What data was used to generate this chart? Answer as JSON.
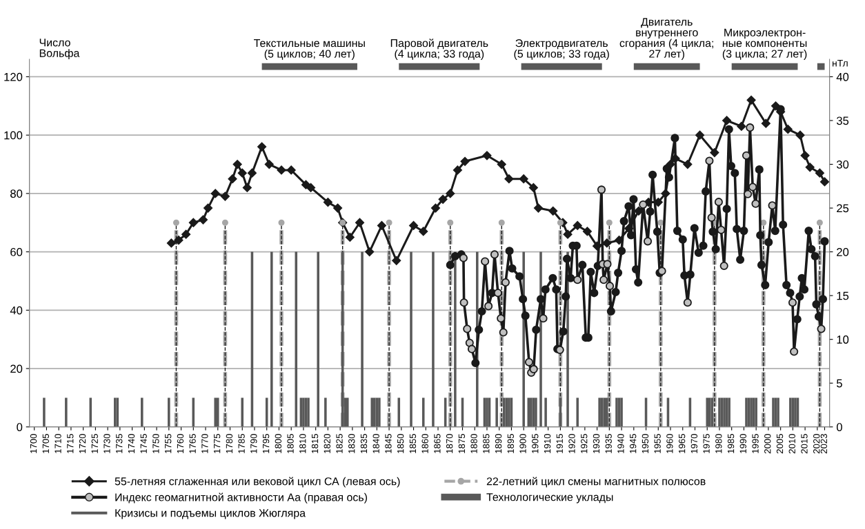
{
  "chart_data": {
    "type": "line",
    "ylabel": "Число\nВольфа",
    "y2label": "нТл",
    "annotations": [
      {
        "text": "Текстильные машины\n(5 циклов; 40 лет)",
        "x": 1812.5,
        "y": 123.5
      },
      {
        "text": "Паровой двигатель\n(4 цикла; 33 года)",
        "x": 1865.5,
        "y": 123.5
      },
      {
        "text": "Электродвигатель\n(5 циклов; 33 года)",
        "x": 1915.5,
        "y": 123.5
      },
      {
        "text": "Двигатель\nвнутреннего\nсгорания (4 цикла;\n27 лет)",
        "x": 1958.5,
        "y": 123.5
      },
      {
        "text": "Микроэлектрон-\nные компоненты\n(3 цикла; 27 лет)",
        "x": 1998.5,
        "y": 123.5
      }
    ],
    "xlim": [
      1698,
      2025
    ],
    "xticks": [
      1700,
      1705,
      1710,
      1715,
      1720,
      1725,
      1730,
      1735,
      1740,
      1745,
      1750,
      1755,
      1760,
      1765,
      1770,
      1775,
      1780,
      1785,
      1790,
      1795,
      1800,
      1805,
      1810,
      1815,
      1820,
      1825,
      1830,
      1835,
      1840,
      1845,
      1850,
      1855,
      1860,
      1865,
      1870,
      1875,
      1880,
      1885,
      1890,
      1895,
      1900,
      1905,
      1910,
      1915,
      1920,
      1925,
      1930,
      1935,
      1940,
      1945,
      1950,
      1955,
      1960,
      1965,
      1970,
      1975,
      1980,
      1985,
      1990,
      1995,
      2000,
      2005,
      2010,
      2015,
      2020,
      2023
    ],
    "ylim": [
      0,
      126
    ],
    "yticks": [
      0,
      20,
      40,
      60,
      80,
      100,
      120
    ],
    "y2lim": [
      0,
      42
    ],
    "y2ticks": [
      0,
      5,
      10,
      15,
      20,
      25,
      30,
      35,
      40
    ],
    "grid": "y",
    "legend": "bottom",
    "series": [
      {
        "name": "55-летняя сглаженная или вековой цикл СА (левая ось)",
        "type": "line",
        "color": "#1a1a1a",
        "marker": "diamond",
        "axis": "y",
        "x": [
          1756,
          1759,
          1762,
          1765,
          1769,
          1771,
          1774,
          1778,
          1781,
          1783,
          1785,
          1787,
          1789,
          1793,
          1796,
          1801,
          1805,
          1811,
          1813,
          1820,
          1824,
          1826,
          1829,
          1833,
          1837,
          1842,
          1848,
          1855,
          1859,
          1864,
          1867,
          1870,
          1873,
          1876,
          1885,
          1891,
          1894,
          1900,
          1904,
          1906,
          1912,
          1916,
          1918,
          1922,
          1926,
          1930,
          1934,
          1939,
          1943,
          1947,
          1951,
          1955,
          1958,
          1960,
          1962,
          1967,
          1972,
          1978,
          1983,
          1989,
          1993,
          1999,
          2003,
          2005,
          2008,
          2013,
          2015,
          2017,
          2021,
          2023
        ],
        "values": [
          63,
          64,
          66,
          70,
          71,
          75,
          80,
          79,
          85,
          90,
          87,
          82,
          87,
          96,
          90,
          88,
          88,
          83,
          82,
          77,
          75,
          70,
          65,
          70,
          60,
          69,
          57,
          69,
          67,
          75,
          78,
          80,
          88,
          91,
          93,
          90,
          85,
          85,
          82,
          75,
          74,
          70,
          66,
          69,
          67,
          62,
          63,
          64,
          68,
          74,
          77,
          77,
          80,
          90,
          92,
          90,
          100,
          94,
          105,
          103,
          112,
          104,
          110,
          108,
          102,
          100,
          93,
          89,
          87,
          84
        ]
      },
      {
        "name": "Индекс геомагнитной активности Аа (правая ось)",
        "type": "line",
        "color": "#1a1a1a",
        "marker": "circle",
        "axis": "y2",
        "x": [
          1870,
          1872,
          1874.5,
          1875.4,
          1875.6,
          1876.9,
          1877.9,
          1878.8,
          1880.3,
          1881.7,
          1882.9,
          1884.2,
          1885.6,
          1887.1,
          1888.1,
          1889.5,
          1890.7,
          1891.7,
          1892.6,
          1894.2,
          1895.3,
          1898.3,
          1899.7,
          1900.7,
          1902.2,
          1903.1,
          1904.1,
          1905.1,
          1907,
          1908,
          1908.9,
          1911.9,
          1913.3,
          1913.8,
          1914.8,
          1916.2,
          1917.2,
          1917.7,
          1919.2,
          1920.1,
          1921.6,
          1922,
          1924,
          1925.4,
          1926.4,
          1927.4,
          1928.8,
          1930.3,
          1931.8,
          1932.3,
          1932.7,
          1934.2,
          1935.2,
          1935.7,
          1937.6,
          1938.6,
          1940,
          1941,
          1942.9,
          1943.9,
          1944.9,
          1945.9,
          1946.8,
          1948.8,
          1950.7,
          1951.7,
          1952.7,
          1954.6,
          1955.6,
          1956.5,
          1958.5,
          1959.4,
          1961.8,
          1962.8,
          1965,
          1965.7,
          1967,
          1968.1,
          1969.8,
          1971.5,
          1973.4,
          1974.4,
          1975.9,
          1976.8,
          1977.3,
          1978.5,
          1979.7,
          1980.7,
          1981.9,
          1983,
          1983.9,
          1984.8,
          1986.3,
          1987.1,
          1988.5,
          1990,
          1991,
          1991.6,
          1992.5,
          1993.6,
          1994.8,
          1996.3,
          1996.7,
          1997.2,
          1998.7,
          2000.1,
          2001.6,
          2002.8,
          2005,
          2006,
          2007.4,
          2008.9,
          2009.9,
          2010.5,
          2011.8,
          2012.8,
          2013.7,
          2014.7,
          2016.5,
          2017.6,
          2019.1,
          2019.6,
          2020.6,
          2021.6,
          2022.3,
          2023
        ],
        "values": [
          18.5,
          19.5,
          19.7,
          19.3,
          14.2,
          11.2,
          9.6,
          8.9,
          7.3,
          11.1,
          13.2,
          18.9,
          13.8,
          15.3,
          19.7,
          15.3,
          12.4,
          10.8,
          16.5,
          20.1,
          18.1,
          17.2,
          14.6,
          12.7,
          7.4,
          6.2,
          6.6,
          11.1,
          14.6,
          12.4,
          15.7,
          17,
          15.7,
          8.9,
          8.8,
          10.9,
          14.9,
          19.2,
          17,
          20.7,
          20.7,
          16.8,
          18.5,
          10.2,
          10.2,
          17.7,
          15.3,
          18.4,
          27.1,
          18.6,
          16.8,
          18.6,
          16.1,
          13.2,
          15.4,
          17.6,
          20.1,
          23.5,
          25.2,
          21.9,
          26,
          18,
          16.5,
          25.4,
          21.2,
          24.6,
          28.8,
          22.3,
          17.6,
          17.8,
          29.5,
          28.5,
          33,
          22.4,
          21.4,
          17.3,
          14.2,
          17.4,
          22.7,
          19.9,
          20.7,
          26.9,
          30.4,
          23.9,
          22.3,
          20.3,
          25.7,
          22.5,
          18.4,
          24.9,
          34,
          29.8,
          29,
          22.6,
          19.1,
          22.4,
          31,
          26.6,
          34.2,
          27.4,
          25.5,
          29.4,
          21.9,
          18.5,
          16.2,
          21.1,
          25.3,
          22.4,
          36.3,
          23.1,
          16.2,
          15.3,
          14.2,
          8.6,
          12.3,
          14.9,
          17,
          15.7,
          22.4,
          20.3,
          19.5,
          14,
          12.6,
          11.2,
          14.6,
          21.2
        ],
        "colors": [
          "#1a1a1a",
          "#1a1a1a",
          "#1a1a1a",
          "#c0c0c0",
          "#c0c0c0",
          "#c0c0c0",
          "#c0c0c0",
          "#c0c0c0",
          "#1a1a1a",
          "#1a1a1a",
          "#1a1a1a",
          "#c0c0c0",
          "#c0c0c0",
          "#1a1a1a",
          "#c0c0c0",
          "#c0c0c0",
          "#c0c0c0",
          "#c0c0c0",
          "#c0c0c0",
          "#1a1a1a",
          "#1a1a1a",
          "#1a1a1a",
          "#1a1a1a",
          "#1a1a1a",
          "#c0c0c0",
          "#c0c0c0",
          "#c0c0c0",
          "#1a1a1a",
          "#1a1a1a",
          "#c0c0c0",
          "#1a1a1a",
          "#1a1a1a",
          "#1a1a1a",
          "#1a1a1a",
          "#c0c0c0",
          "#1a1a1a",
          "#1a1a1a",
          "#1a1a1a",
          "#1a1a1a",
          "#1a1a1a",
          "#1a1a1a",
          "#c0c0c0",
          "#1a1a1a",
          "#1a1a1a",
          "#1a1a1a",
          "#1a1a1a",
          "#1a1a1a",
          "#1a1a1a",
          "#c0c0c0",
          "#c0c0c0",
          "#c0c0c0",
          "#c0c0c0",
          "#c0c0c0",
          "#1a1a1a",
          "#1a1a1a",
          "#1a1a1a",
          "#1a1a1a",
          "#1a1a1a",
          "#1a1a1a",
          "#1a1a1a",
          "#1a1a1a",
          "#1a1a1a",
          "#1a1a1a",
          "#c0c0c0",
          "#c0c0c0",
          "#1a1a1a",
          "#1a1a1a",
          "#1a1a1a",
          "#1a1a1a",
          "#c0c0c0",
          "#1a1a1a",
          "#1a1a1a",
          "#1a1a1a",
          "#1a1a1a",
          "#1a1a1a",
          "#1a1a1a",
          "#c0c0c0",
          "#1a1a1a",
          "#1a1a1a",
          "#1a1a1a",
          "#1a1a1a",
          "#1a1a1a",
          "#c0c0c0",
          "#c0c0c0",
          "#1a1a1a",
          "#1a1a1a",
          "#c0c0c0",
          "#c0c0c0",
          "#c0c0c0",
          "#1a1a1a",
          "#1a1a1a",
          "#1a1a1a",
          "#1a1a1a",
          "#1a1a1a",
          "#1a1a1a",
          "#1a1a1a",
          "#c0c0c0",
          "#c0c0c0",
          "#c0c0c0",
          "#c0c0c0",
          "#c0c0c0",
          "#1a1a1a",
          "#1a1a1a",
          "#1a1a1a",
          "#1a1a1a",
          "#1a1a1a",
          "#c0c0c0",
          "#1a1a1a",
          "#1a1a1a",
          "#1a1a1a",
          "#1a1a1a",
          "#1a1a1a",
          "#c0c0c0",
          "#c0c0c0",
          "#1a1a1a",
          "#1a1a1a",
          "#1a1a1a",
          "#1a1a1a",
          "#1a1a1a",
          "#1a1a1a",
          "#1a1a1a",
          "#1a1a1a",
          "#1a1a1a",
          "#c0c0c0",
          "#1a1a1a",
          "#1a1a1a"
        ]
      },
      {
        "name": "Кризисы и подъемы циклов Жюгляра",
        "type": "bar",
        "color": "#595959",
        "axis": "y",
        "x": [
          1704,
          1713,
          1723,
          1733,
          1734,
          1744,
          1755,
          1765,
          1774,
          1775,
          1785,
          1789,
          1795,
          1797,
          1807,
          1809,
          1810,
          1811,
          1812,
          1816,
          1819,
          1826,
          1827,
          1828,
          1834,
          1838,
          1839,
          1840,
          1841,
          1849,
          1854,
          1859,
          1863,
          1868,
          1872,
          1875,
          1881,
          1884,
          1885,
          1886,
          1889,
          1892,
          1893,
          1894,
          1895,
          1900,
          1902,
          1903,
          1904,
          1905,
          1907,
          1909,
          1915,
          1918,
          1922,
          1931,
          1932,
          1933,
          1934,
          1938,
          1939,
          1940,
          1950,
          1959,
          1968,
          1975,
          1976,
          1977,
          1980,
          1981,
          1982,
          1983,
          1984,
          1991,
          1992,
          1993,
          1994,
          1995,
          2002,
          2003,
          2004,
          2009,
          2010,
          2011,
          2012
        ],
        "values": [
          10,
          10,
          10,
          10,
          10,
          10,
          10,
          10,
          10,
          10,
          10,
          60,
          10,
          60,
          60,
          10,
          10,
          10,
          10,
          60,
          10,
          60,
          10,
          10,
          60,
          10,
          10,
          10,
          10,
          10,
          60,
          10,
          60,
          10,
          60,
          10,
          60,
          10,
          10,
          10,
          10,
          10,
          10,
          10,
          10,
          60,
          10,
          10,
          10,
          10,
          60,
          10,
          10,
          60,
          10,
          10,
          10,
          10,
          10,
          10,
          10,
          10,
          10,
          10,
          10,
          10,
          10,
          10,
          10,
          10,
          10,
          10,
          10,
          10,
          10,
          10,
          10,
          10,
          10,
          10,
          10,
          10,
          10,
          10,
          10
        ]
      },
      {
        "name": "22-летний цикл смены магнитных полюсов",
        "type": "lollipop",
        "color": "#a6a6a6",
        "marker": "circle",
        "line_style": "dashed",
        "axis": "y",
        "x": [
          1758,
          1778,
          1801,
          1826,
          1845,
          1870,
          1891,
          1915,
          1935,
          1956,
          1978,
          1998,
          2021
        ],
        "values": [
          70,
          70,
          70,
          70,
          70,
          70,
          70,
          70,
          70,
          70,
          70,
          70,
          70
        ]
      },
      {
        "name": "Технологические уклады",
        "type": "line",
        "color": "#595959",
        "marker": "none",
        "axis": "y",
        "x": [
          1793,
          1832,
          1840,
          1849,
          1882,
          1890,
          1899,
          1932,
          1938,
          1945,
          1972,
          1978,
          1985,
          2012,
          2016,
          2020,
          2023
        ],
        "values": [
          123.5,
          123.5,
          null,
          123.5,
          123.5,
          null,
          123.5,
          123.5,
          null,
          123.5,
          123.5,
          null,
          123.5,
          123.5,
          null,
          123.5,
          123.5
        ]
      }
    ]
  }
}
